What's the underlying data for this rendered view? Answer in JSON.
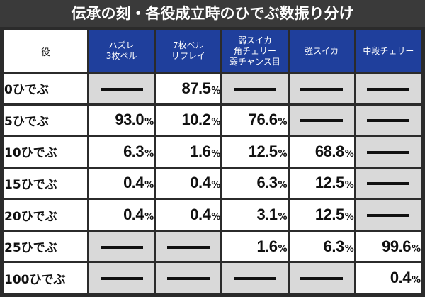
{
  "title": "伝承の刻・各役成立時のひでぶ数振り分け",
  "corner_label": "役",
  "columns": [
    [
      "ハズレ",
      "3枚ベル"
    ],
    [
      "7枚ベル",
      "リプレイ"
    ],
    [
      "弱スイカ",
      "角チェリー",
      "弱チャンス目"
    ],
    [
      "強スイカ"
    ],
    [
      "中段チェリー"
    ]
  ],
  "rows": [
    {
      "label": "0ひでぶ",
      "values": [
        null,
        "87.5",
        null,
        null,
        null
      ]
    },
    {
      "label": "5ひでぶ",
      "values": [
        "93.0",
        "10.2",
        "76.6",
        null,
        null
      ]
    },
    {
      "label": "10ひでぶ",
      "values": [
        "6.3",
        "1.6",
        "12.5",
        "68.8",
        null
      ]
    },
    {
      "label": "15ひでぶ",
      "values": [
        "0.4",
        "0.4",
        "6.3",
        "12.5",
        null
      ]
    },
    {
      "label": "20ひでぶ",
      "values": [
        "0.4",
        "0.4",
        "3.1",
        "12.5",
        null
      ]
    },
    {
      "label": "25ひでぶ",
      "values": [
        null,
        null,
        "1.6",
        "6.3",
        "99.6"
      ]
    },
    {
      "label": "100ひでぶ",
      "values": [
        null,
        null,
        null,
        null,
        "0.4"
      ]
    }
  ],
  "unit": "%",
  "colors": {
    "header_bg": "#1f3f9c",
    "empty_cell": "#d9d9d9",
    "background": "#2b2b2b"
  }
}
